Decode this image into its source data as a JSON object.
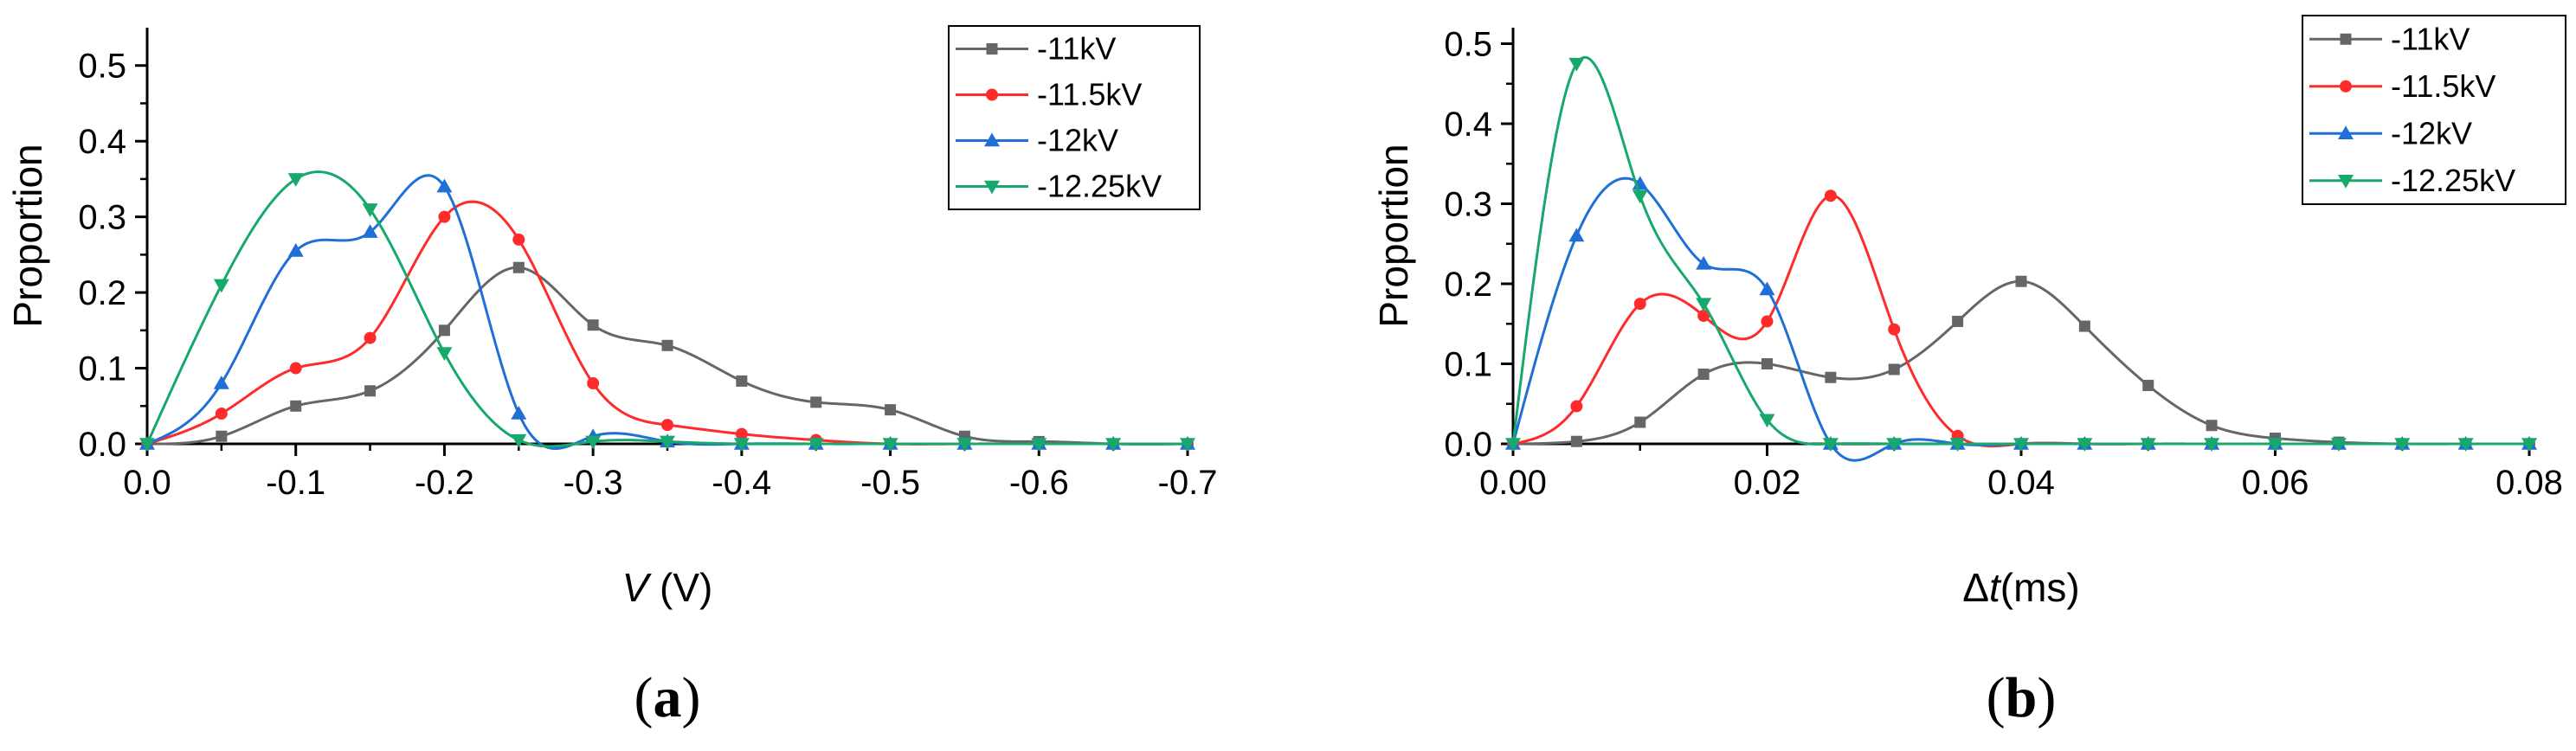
{
  "chart_data": [
    {
      "type": "line",
      "panel_label": "(a)",
      "panel_letter": "a",
      "xlabel": "V",
      "xlabel_unit": "(V)",
      "ylabel": "Proportion",
      "xlim": [
        0,
        -0.7
      ],
      "ylim": [
        0,
        0.55
      ],
      "x_ticks": [
        "0.0",
        "-0.1",
        "-0.2",
        "-0.3",
        "-0.4",
        "-0.5",
        "-0.6",
        "-0.7"
      ],
      "x_tick_values": [
        0,
        -0.1,
        -0.2,
        -0.3,
        -0.4,
        -0.5,
        -0.6,
        -0.7
      ],
      "y_ticks": [
        "0.0",
        "0.1",
        "0.2",
        "0.3",
        "0.4",
        "0.5"
      ],
      "y_tick_values": [
        0,
        0.1,
        0.2,
        0.3,
        0.4,
        0.5
      ],
      "legend_position": "top-right",
      "x": [
        0,
        -0.05,
        -0.1,
        -0.15,
        -0.2,
        -0.25,
        -0.3,
        -0.35,
        -0.4,
        -0.45,
        -0.5,
        -0.55,
        -0.6,
        -0.65,
        -0.7
      ],
      "series": [
        {
          "name": "-11kV",
          "color": "#666666",
          "marker": "square",
          "values": [
            0,
            0.01,
            0.05,
            0.07,
            0.15,
            0.233,
            0.157,
            0.13,
            0.083,
            0.055,
            0.045,
            0.01,
            0.003,
            0,
            0
          ]
        },
        {
          "name": "-11.5kV",
          "color": "#ff2b2b",
          "marker": "circle",
          "values": [
            0,
            0.04,
            0.1,
            0.14,
            0.3,
            0.27,
            0.08,
            0.025,
            0.013,
            0.005,
            0,
            0,
            0,
            0,
            0
          ]
        },
        {
          "name": "-12kV",
          "color": "#1f6fd6",
          "marker": "triangle-up",
          "values": [
            0,
            0.08,
            0.255,
            0.28,
            0.34,
            0.04,
            0.01,
            0.003,
            0,
            0,
            0,
            0,
            0,
            0,
            0
          ]
        },
        {
          "name": "-12.25kV",
          "color": "#17a86b",
          "marker": "triangle-down",
          "values": [
            0,
            0.21,
            0.35,
            0.31,
            0.12,
            0.005,
            0.003,
            0.003,
            0,
            0,
            0,
            0,
            0,
            0,
            0
          ]
        }
      ]
    },
    {
      "type": "line",
      "panel_label": "(b)",
      "panel_letter": "b",
      "xlabel": "Δt",
      "xlabel_unit": "(ms)",
      "ylabel": "Proportion",
      "xlim": [
        0,
        0.08
      ],
      "ylim": [
        0,
        0.52
      ],
      "x_ticks": [
        "0.00",
        "0.02",
        "0.04",
        "0.06",
        "0.08"
      ],
      "x_tick_values": [
        0,
        0.02,
        0.04,
        0.06,
        0.08
      ],
      "y_ticks": [
        "0.0",
        "0.1",
        "0.2",
        "0.3",
        "0.4",
        "0.5"
      ],
      "y_tick_values": [
        0,
        0.1,
        0.2,
        0.3,
        0.4,
        0.5
      ],
      "legend_position": "top-right",
      "x": [
        0,
        0.005,
        0.01,
        0.015,
        0.02,
        0.025,
        0.03,
        0.035,
        0.04,
        0.045,
        0.05,
        0.055,
        0.06,
        0.065,
        0.07,
        0.075,
        0.08
      ],
      "series": [
        {
          "name": "-11kV",
          "color": "#666666",
          "marker": "square",
          "values": [
            0,
            0.003,
            0.027,
            0.087,
            0.1,
            0.083,
            0.093,
            0.153,
            0.203,
            0.147,
            0.073,
            0.023,
            0.007,
            0.002,
            0,
            0,
            0
          ]
        },
        {
          "name": "-11.5kV",
          "color": "#ff2b2b",
          "marker": "circle",
          "values": [
            0,
            0.047,
            0.175,
            0.16,
            0.153,
            0.31,
            0.143,
            0.01,
            0,
            0,
            0,
            0,
            0,
            0,
            0,
            0,
            0
          ]
        },
        {
          "name": "-12kV",
          "color": "#1f6fd6",
          "marker": "triangle-up",
          "values": [
            0,
            0.26,
            0.325,
            0.225,
            0.193,
            0,
            0,
            0,
            0,
            0,
            0,
            0,
            0,
            0,
            0,
            0,
            0
          ]
        },
        {
          "name": "-12.25kV",
          "color": "#17a86b",
          "marker": "triangle-down",
          "values": [
            0,
            0.475,
            0.31,
            0.175,
            0.03,
            0,
            0,
            0,
            0,
            0,
            0,
            0,
            0,
            0,
            0,
            0,
            0
          ]
        }
      ]
    }
  ]
}
